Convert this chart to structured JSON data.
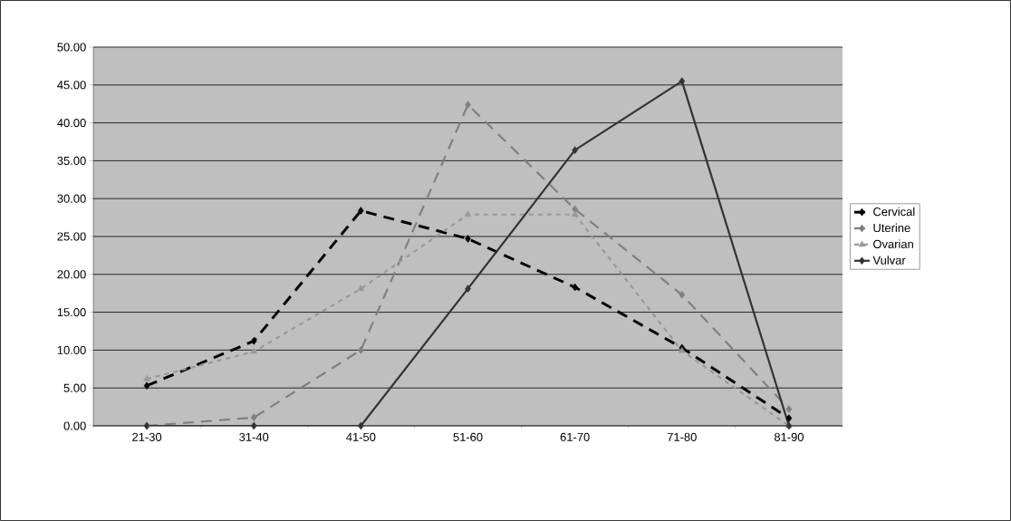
{
  "chart_data": {
    "type": "line",
    "categories": [
      "21-30",
      "31-40",
      "41-50",
      "51-60",
      "61-70",
      "71-80",
      "81-90"
    ],
    "series": [
      {
        "name": "Cervical",
        "color": "#000000",
        "line_style": "dashed",
        "marker": "diamond",
        "values": [
          5.3,
          11.2,
          28.4,
          24.7,
          18.3,
          10.3,
          1.0
        ]
      },
      {
        "name": "Uterine",
        "color": "#808080",
        "line_style": "dashed",
        "marker": "diamond",
        "values": [
          0.0,
          1.1,
          10.0,
          42.4,
          28.6,
          17.3,
          2.2
        ]
      },
      {
        "name": "Ovarian",
        "color": "#999999",
        "line_style": "dotted",
        "marker": "triangle",
        "values": [
          6.2,
          9.8,
          18.1,
          27.9,
          27.9,
          9.9,
          0.0
        ]
      },
      {
        "name": "Vulvar",
        "color": "#333333",
        "line_style": "solid",
        "marker": "diamond",
        "values": [
          0.0,
          0.0,
          0.0,
          18.1,
          36.4,
          45.5,
          0.0
        ]
      }
    ],
    "ylim": [
      0,
      50
    ],
    "yticks": [
      {
        "value": 0,
        "label": "0.00"
      },
      {
        "value": 5,
        "label": "5.00"
      },
      {
        "value": 10,
        "label": "10.00"
      },
      {
        "value": 15,
        "label": "15.00"
      },
      {
        "value": 20,
        "label": "20.00"
      },
      {
        "value": 25,
        "label": "25.00"
      },
      {
        "value": 30,
        "label": "30.00"
      },
      {
        "value": 35,
        "label": "35.00"
      },
      {
        "value": 40,
        "label": "40.00"
      },
      {
        "value": 45,
        "label": "45.00"
      },
      {
        "value": 50,
        "label": "50.00"
      }
    ],
    "grid": "y",
    "legend": "right"
  }
}
